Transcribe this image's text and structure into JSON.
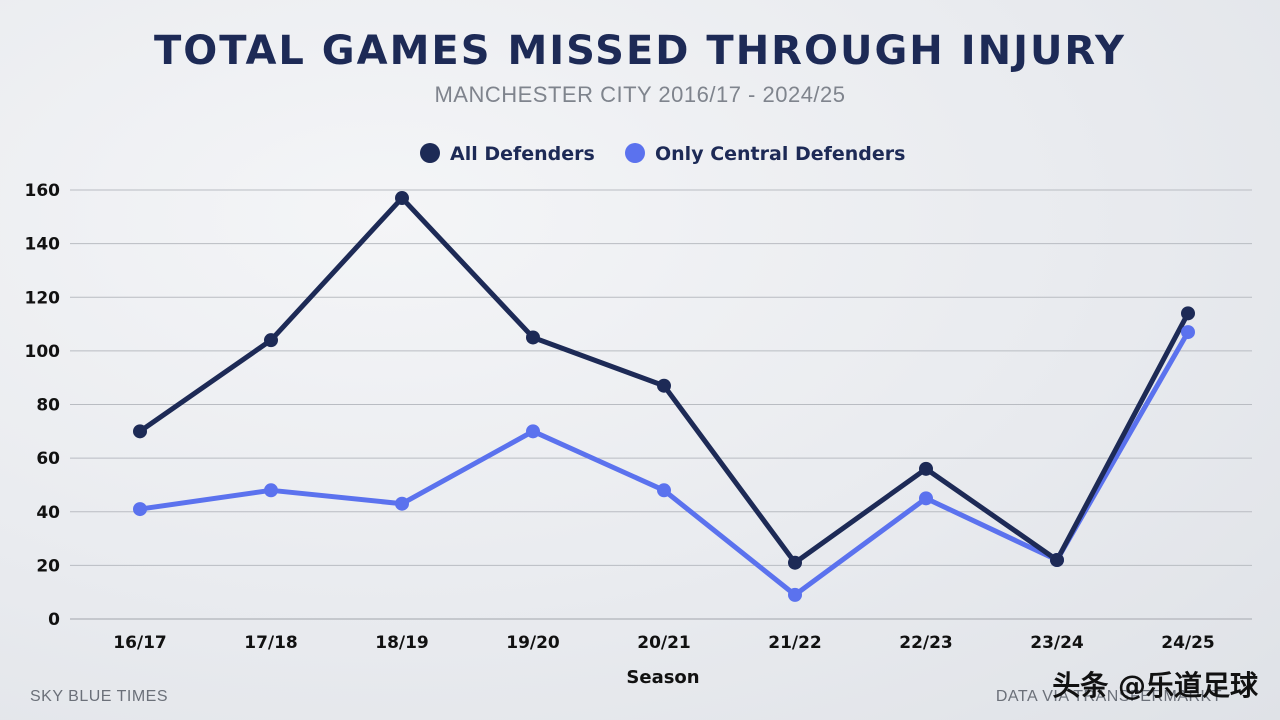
{
  "title": "TOTAL GAMES MISSED THROUGH INJURY",
  "subtitle": "MANCHESTER CITY 2016/17 - 2024/25",
  "footer_left": "SKY BLUE TIMES",
  "footer_right": "DATA VIA TRANSFERMARKT",
  "watermark": "头条 @乐道足球",
  "colors": {
    "all_defenders": "#1d2a56",
    "central_defenders": "#5b72ee",
    "grid": "#b9bcc2"
  },
  "chart_data": {
    "type": "line",
    "title": "TOTAL GAMES MISSED THROUGH INJURY",
    "subtitle": "MANCHESTER CITY 2016/17 - 2024/25",
    "xlabel": "Season",
    "ylabel": "",
    "categories": [
      "16/17",
      "17/18",
      "18/19",
      "19/20",
      "20/21",
      "21/22",
      "22/23",
      "23/24",
      "24/25"
    ],
    "ylim": [
      0,
      160
    ],
    "yticks": [
      0,
      20,
      40,
      60,
      80,
      100,
      120,
      140,
      160
    ],
    "grid": "horizontal",
    "legend_position": "top-center",
    "series": [
      {
        "name": "All Defenders",
        "values": [
          70,
          104,
          157,
          105,
          87,
          21,
          56,
          22,
          114
        ]
      },
      {
        "name": "Only Central Defenders",
        "values": [
          41,
          48,
          43,
          70,
          48,
          9,
          45,
          22,
          107
        ]
      }
    ]
  }
}
